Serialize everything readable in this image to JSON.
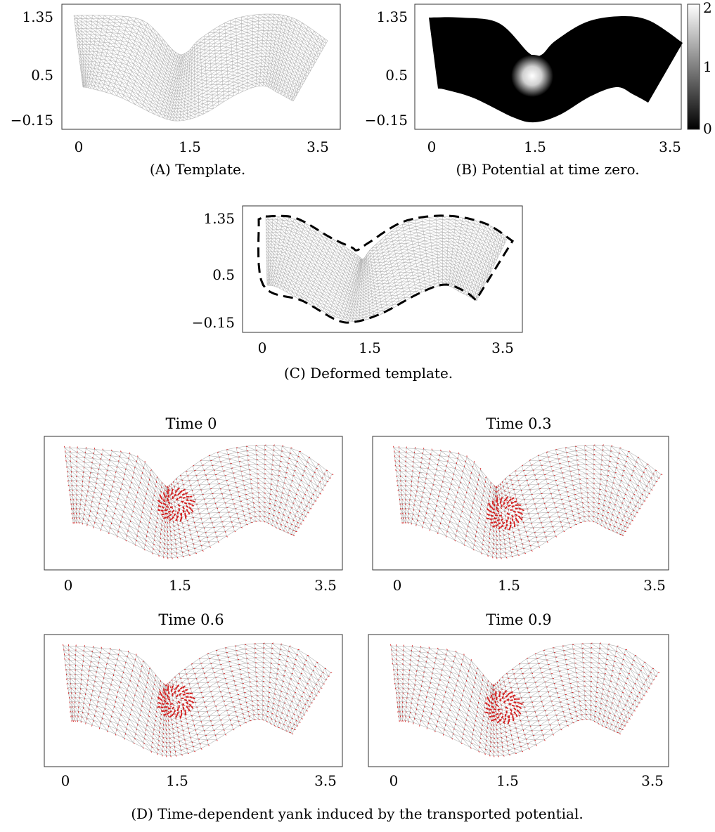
{
  "panels": {
    "a": {
      "caption_prefix": "(A)",
      "caption_text": "Template.",
      "xticks": [
        "0",
        "1.5",
        "3.5"
      ],
      "yticks": [
        "1.35",
        "0.5",
        "−0.15"
      ]
    },
    "b": {
      "caption_prefix": "(B)",
      "caption_text": "Potential at time zero.",
      "xticks": [
        "0",
        "1.5",
        "3.5"
      ],
      "yticks": [
        "1.35",
        "0.5",
        "−0.15"
      ],
      "colorbar_ticks": [
        "2",
        "1",
        "0"
      ]
    },
    "c": {
      "caption_prefix": "(C)",
      "caption_text": "Deformed template.",
      "xticks": [
        "0",
        "1.5",
        "3.5"
      ],
      "yticks": [
        "1.35",
        "0.5",
        "−0.15"
      ]
    },
    "d": {
      "caption_prefix": "(D)",
      "caption_text": "Time-dependent yank induced by the transported potential.",
      "subplots": [
        {
          "title": "Time 0",
          "xticks": [
            "0",
            "1.5",
            "3.5"
          ]
        },
        {
          "title": "Time 0.3",
          "xticks": [
            "0",
            "1.5",
            "3.5"
          ]
        },
        {
          "title": "Time 0.6",
          "xticks": [
            "0",
            "1.5",
            "3.5"
          ]
        },
        {
          "title": "Time 0.9",
          "xticks": [
            "0",
            "1.5",
            "3.5"
          ]
        }
      ]
    }
  },
  "colors": {
    "mesh": "#b4b4b4",
    "vectors": "#d42020",
    "outline": "#000000"
  }
}
